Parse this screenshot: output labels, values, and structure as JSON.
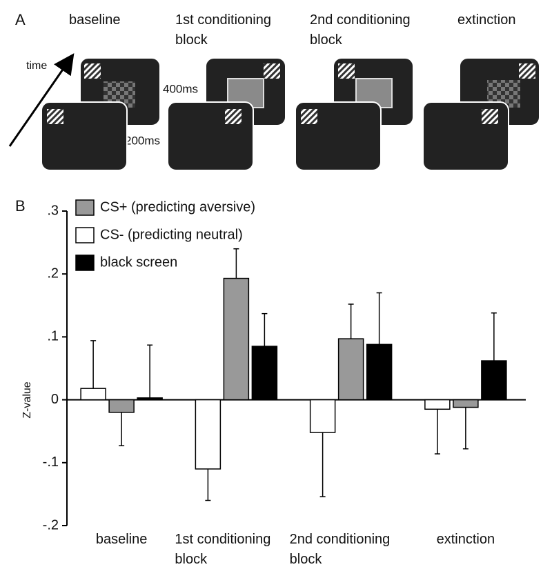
{
  "panel_a": {
    "label": "A",
    "time_label": "time",
    "interval_long": "400ms",
    "interval_short": "200ms",
    "phases": [
      "baseline",
      "1st conditioning block",
      "2nd conditioning block",
      "extinction"
    ]
  },
  "panel_b": {
    "label": "B"
  },
  "chart_data": {
    "type": "bar",
    "y_label": "Z-value",
    "categories": [
      "baseline",
      "1st conditioning block",
      "2nd conditioning block",
      "extinction"
    ],
    "series": [
      {
        "name": "CS+ (predicting aversive)",
        "color": "#999999",
        "values": [
          -0.02,
          0.193,
          0.097,
          -0.012
        ],
        "errors": [
          0.053,
          0.047,
          0.055,
          0.066
        ]
      },
      {
        "name": "CS- (predicting neutral)",
        "color": "#ffffff",
        "values": [
          0.018,
          -0.11,
          -0.052,
          -0.015
        ],
        "errors": [
          0.076,
          0.05,
          0.102,
          0.071
        ]
      },
      {
        "name": "black screen",
        "color": "#000000",
        "values": [
          0.003,
          0.085,
          0.088,
          0.062
        ],
        "errors": [
          0.084,
          0.052,
          0.082,
          0.076
        ]
      }
    ],
    "ylim": [
      -0.2,
      0.3
    ],
    "yticks": [
      {
        "value": -0.2,
        "label": "-.2"
      },
      {
        "value": -0.1,
        "label": "-.1"
      },
      0,
      {
        "value": 0.1,
        "label": ".1"
      },
      {
        "value": 0.2,
        "label": ".2"
      },
      {
        "value": 0.3,
        "label": ".3"
      }
    ]
  }
}
